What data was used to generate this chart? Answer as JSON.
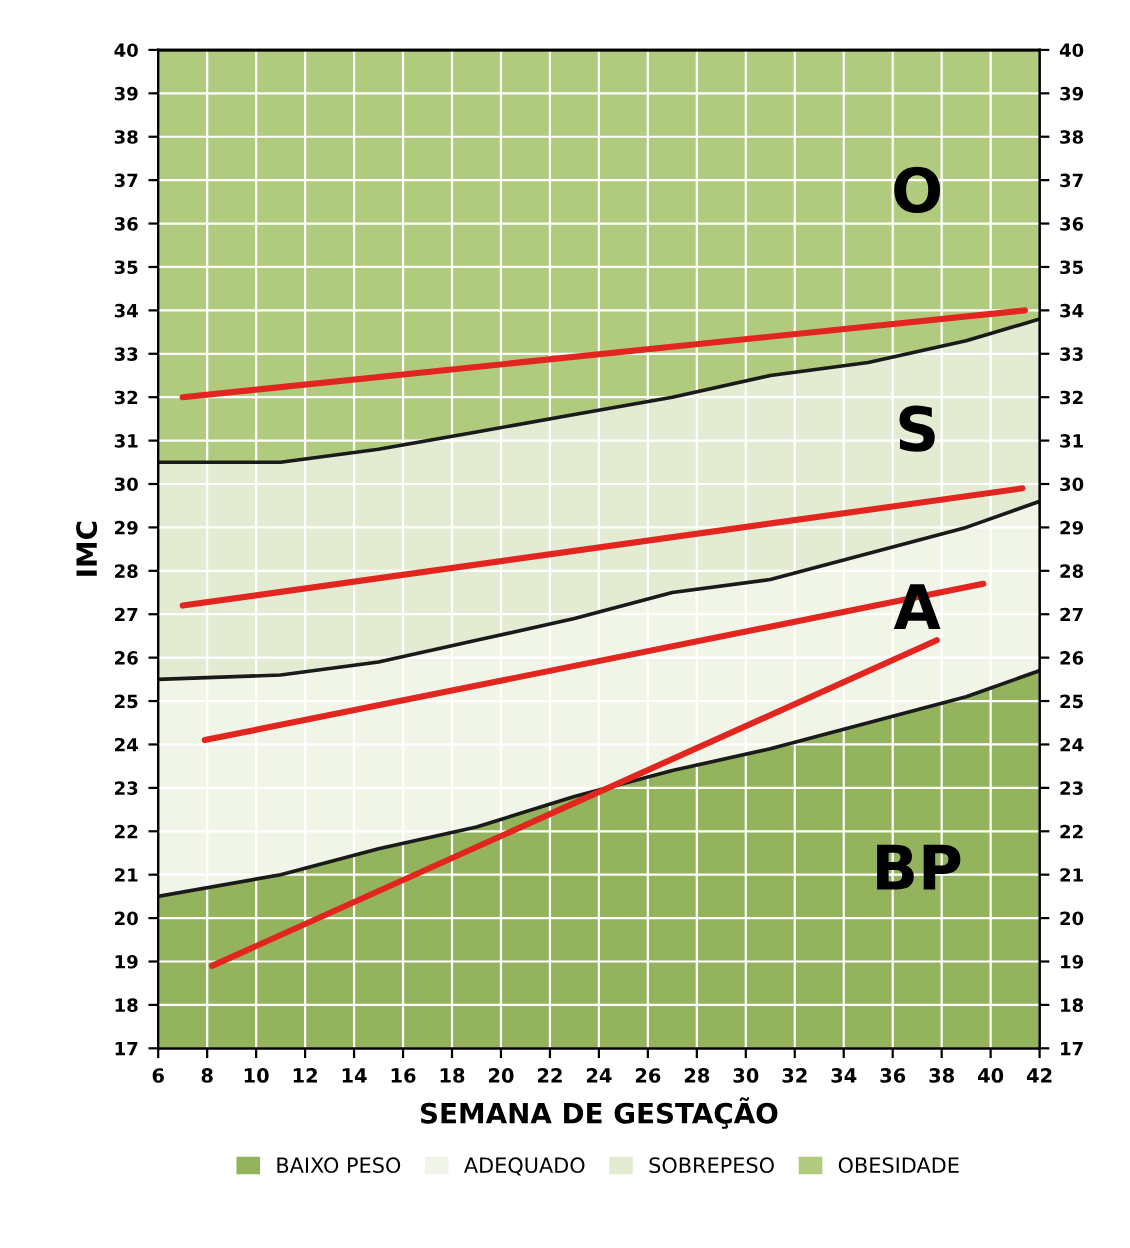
{
  "chart_data": {
    "type": "area",
    "xlabel": "SEMANA DE GESTAÇÃO",
    "ylabel": "IMC",
    "x": [
      6,
      11,
      15,
      19,
      23,
      27,
      31,
      35,
      39,
      42
    ],
    "xlim": [
      6,
      42
    ],
    "xticks": [
      6,
      8,
      10,
      12,
      14,
      16,
      18,
      20,
      22,
      24,
      26,
      28,
      30,
      32,
      34,
      36,
      38,
      40,
      42
    ],
    "ylim": [
      17,
      40
    ],
    "yticks": [
      17,
      18,
      19,
      20,
      21,
      22,
      23,
      24,
      25,
      26,
      27,
      28,
      29,
      30,
      31,
      32,
      33,
      34,
      35,
      36,
      37,
      38,
      39,
      40
    ],
    "y2lim": [
      17,
      40
    ],
    "y2ticks": [
      17,
      18,
      19,
      20,
      21,
      22,
      23,
      24,
      25,
      26,
      27,
      28,
      29,
      30,
      31,
      32,
      33,
      34,
      35,
      36,
      37,
      38,
      39,
      40
    ],
    "grid": true,
    "legend": "bottom",
    "series": [
      {
        "name": "BAIXO PESO",
        "color": "#93b45c",
        "values": [
          20.5,
          21.0,
          21.6,
          22.1,
          22.8,
          23.4,
          23.9,
          24.5,
          25.1,
          25.7
        ]
      },
      {
        "name": "ADEQUADO",
        "color": "#f1f5e8",
        "values": [
          25.5,
          25.6,
          25.9,
          26.4,
          26.9,
          27.5,
          27.8,
          28.4,
          29.0,
          29.6
        ]
      },
      {
        "name": "SOBREPESO",
        "color": "#e3ebd2",
        "values": [
          30.5,
          30.5,
          30.8,
          31.2,
          31.6,
          32.0,
          32.5,
          32.8,
          33.3,
          33.8
        ]
      },
      {
        "name": "OBESIDADE",
        "color": "#b0cb7e",
        "values": [
          40,
          40,
          40,
          40,
          40,
          40,
          40,
          40,
          40,
          40
        ]
      },
      {
        "type": "line",
        "color": "#e2261f",
        "x": [
          7,
          41.4
        ],
        "values": [
          32.0,
          34.0
        ]
      },
      {
        "type": "line",
        "color": "#e2261f",
        "x": [
          7,
          41.3
        ],
        "values": [
          27.2,
          29.9
        ]
      },
      {
        "type": "line",
        "color": "#e2261f",
        "x": [
          7.9,
          39.7
        ],
        "values": [
          24.1,
          27.7
        ]
      },
      {
        "type": "line",
        "color": "#e2261f",
        "x": [
          8.2,
          37.8
        ],
        "values": [
          18.9,
          26.4
        ]
      }
    ],
    "annotations": [
      "O",
      "S",
      "A",
      "BP"
    ]
  }
}
